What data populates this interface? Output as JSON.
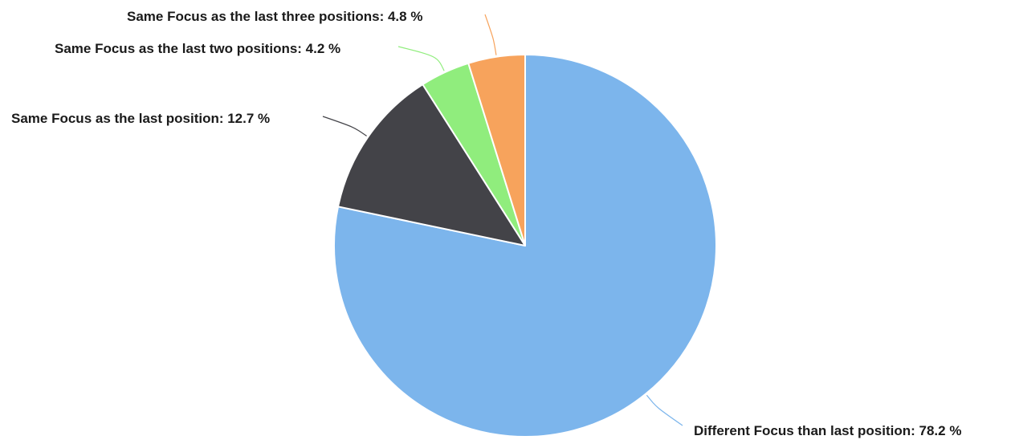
{
  "chart_data": {
    "type": "pie",
    "title": "",
    "slices": [
      {
        "name": "Different Focus than last position",
        "value": 78.2,
        "label": "Different Focus than last position: 78.2 %",
        "color": "#7cb5ec"
      },
      {
        "name": "Same Focus as the last position",
        "value": 12.7,
        "label": "Same Focus as the last position: 12.7 %",
        "color": "#434348"
      },
      {
        "name": "Same Focus as the last two positions",
        "value": 4.2,
        "label": "Same Focus as the last two positions: 4.2 %",
        "color": "#90ed7d"
      },
      {
        "name": "Same Focus as the last three positions",
        "value": 4.8,
        "label": "Same Focus as the last three positions: 4.8 %",
        "color": "#f7a35c"
      }
    ],
    "start_angle": "12 o'clock",
    "direction": "clockwise",
    "legend": "none"
  }
}
